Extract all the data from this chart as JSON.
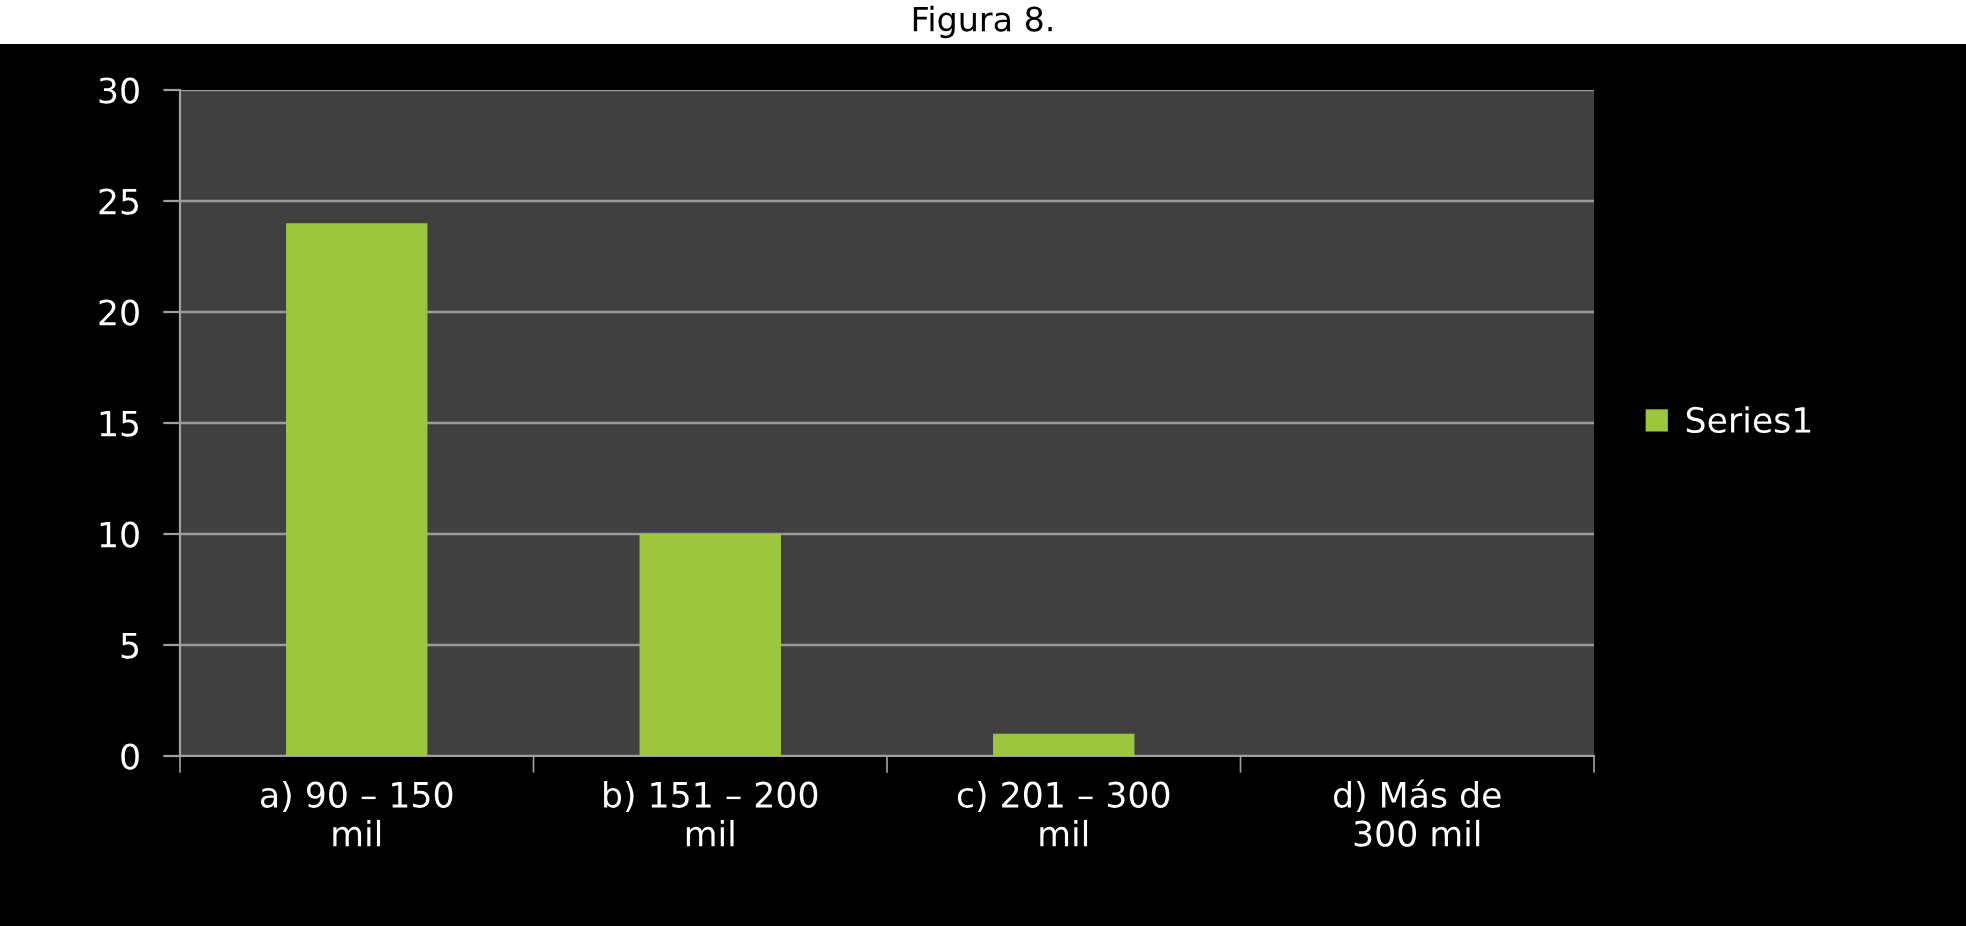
{
  "chart_data": {
    "type": "bar",
    "title": "Figura 8.",
    "categories": [
      "a) 90 – 150\nmil",
      "b) 151 – 200\nmil",
      "c) 201 – 300\nmil",
      "d) Más de\n300 mil"
    ],
    "series": [
      {
        "name": "Series1",
        "color": "#9cc63e",
        "values": [
          24,
          10,
          1,
          0
        ]
      }
    ],
    "ylim": [
      0,
      30
    ],
    "yticks": [
      0,
      5,
      10,
      15,
      20,
      25,
      30
    ],
    "grid": "y",
    "legend": "right"
  }
}
